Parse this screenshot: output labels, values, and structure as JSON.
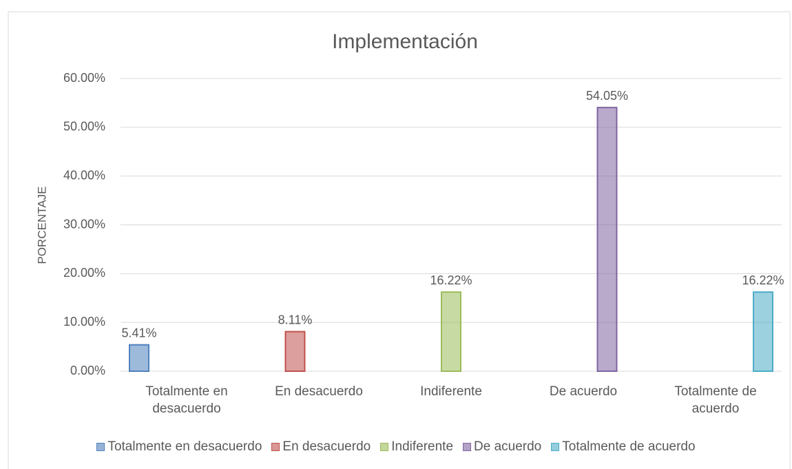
{
  "chart_data": {
    "type": "bar",
    "title": "Implementación",
    "y_label": "PORCENTAJE",
    "categories": [
      "Totalmente en desacuerdo",
      "En desacuerdo",
      "Indiferente",
      "De acuerdo",
      "Totalmente de acuerdo"
    ],
    "series": [
      {
        "name": "Totalmente en desacuerdo",
        "color": "#4f81bd",
        "values": [
          5.41,
          null,
          null,
          null,
          null
        ],
        "value_labels": [
          "5.41%",
          null,
          null,
          null,
          null
        ]
      },
      {
        "name": "En desacuerdo",
        "color": "#c0504d",
        "values": [
          null,
          8.11,
          null,
          null,
          null
        ],
        "value_labels": [
          null,
          "8.11%",
          null,
          null,
          null
        ]
      },
      {
        "name": "Indiferente",
        "color": "#9bbb59",
        "values": [
          null,
          null,
          16.22,
          null,
          null
        ],
        "value_labels": [
          null,
          null,
          "16.22%",
          null,
          null
        ]
      },
      {
        "name": "De acuerdo",
        "color": "#8064a2",
        "values": [
          null,
          null,
          null,
          54.05,
          null
        ],
        "value_labels": [
          null,
          null,
          null,
          "54.05%",
          null
        ]
      },
      {
        "name": "Totalmente de acuerdo",
        "color": "#4bacc6",
        "values": [
          null,
          null,
          null,
          null,
          16.22
        ],
        "value_labels": [
          null,
          null,
          null,
          null,
          "16.22%"
        ]
      }
    ],
    "ylim": [
      0,
      60
    ],
    "yticks": [
      {
        "value": 0,
        "label": "0.00%"
      },
      {
        "value": 10,
        "label": "10.00%"
      },
      {
        "value": 20,
        "label": "20.00%"
      },
      {
        "value": 30,
        "label": "30.00%"
      },
      {
        "value": 40,
        "label": "40.00%"
      },
      {
        "value": 50,
        "label": "50.00%"
      },
      {
        "value": 60,
        "label": "60.00%"
      }
    ],
    "grid": true,
    "legend": "bottom"
  }
}
